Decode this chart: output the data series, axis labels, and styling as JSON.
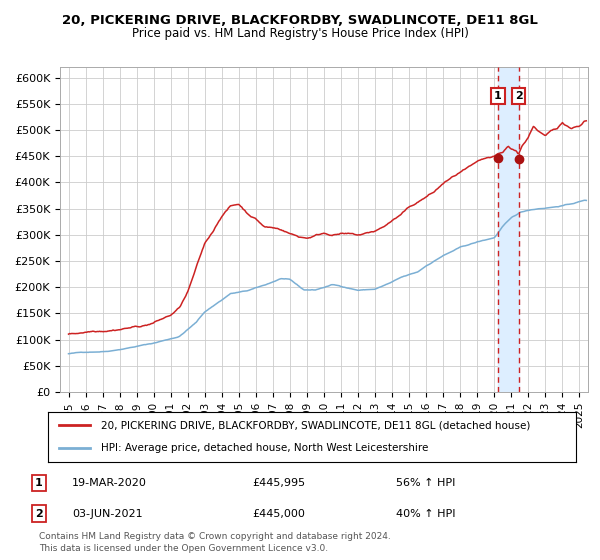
{
  "title1": "20, PICKERING DRIVE, BLACKFORDBY, SWADLINCOTE, DE11 8GL",
  "title2": "Price paid vs. HM Land Registry's House Price Index (HPI)",
  "legend_line1": "20, PICKERING DRIVE, BLACKFORDBY, SWADLINCOTE, DE11 8GL (detached house)",
  "legend_line2": "HPI: Average price, detached house, North West Leicestershire",
  "purchase1_label": "1",
  "purchase1_date": "19-MAR-2020",
  "purchase1_price": "£445,995",
  "purchase1_hpi": "56% ↑ HPI",
  "purchase2_label": "2",
  "purchase2_date": "03-JUN-2021",
  "purchase2_price": "£445,000",
  "purchase2_hpi": "40% ↑ HPI",
  "footnote1": "Contains HM Land Registry data © Crown copyright and database right 2024.",
  "footnote2": "This data is licensed under the Open Government Licence v3.0.",
  "hpi_color": "#7bafd4",
  "price_color": "#cc2222",
  "marker_color": "#aa1111",
  "purchase1_x": 2020.21,
  "purchase1_y": 445995,
  "purchase2_x": 2021.42,
  "purchase2_y": 445000,
  "ylim": [
    0,
    620000
  ],
  "xlim": [
    1994.5,
    2025.5
  ],
  "yticks": [
    0,
    50000,
    100000,
    150000,
    200000,
    250000,
    300000,
    350000,
    400000,
    450000,
    500000,
    550000,
    600000
  ],
  "ytick_labels": [
    "£0",
    "£50K",
    "£100K",
    "£150K",
    "£200K",
    "£250K",
    "£300K",
    "£350K",
    "£400K",
    "£450K",
    "£500K",
    "£550K",
    "£600K"
  ],
  "xticks": [
    1995,
    1996,
    1997,
    1998,
    1999,
    2000,
    2001,
    2002,
    2003,
    2004,
    2005,
    2006,
    2007,
    2008,
    2009,
    2010,
    2011,
    2012,
    2013,
    2014,
    2015,
    2016,
    2017,
    2018,
    2019,
    2020,
    2021,
    2022,
    2023,
    2024,
    2025
  ],
  "background_color": "#ffffff",
  "grid_color": "#cccccc",
  "highlight_color": "#ddeeff",
  "box_edge_color": "#cc2222"
}
